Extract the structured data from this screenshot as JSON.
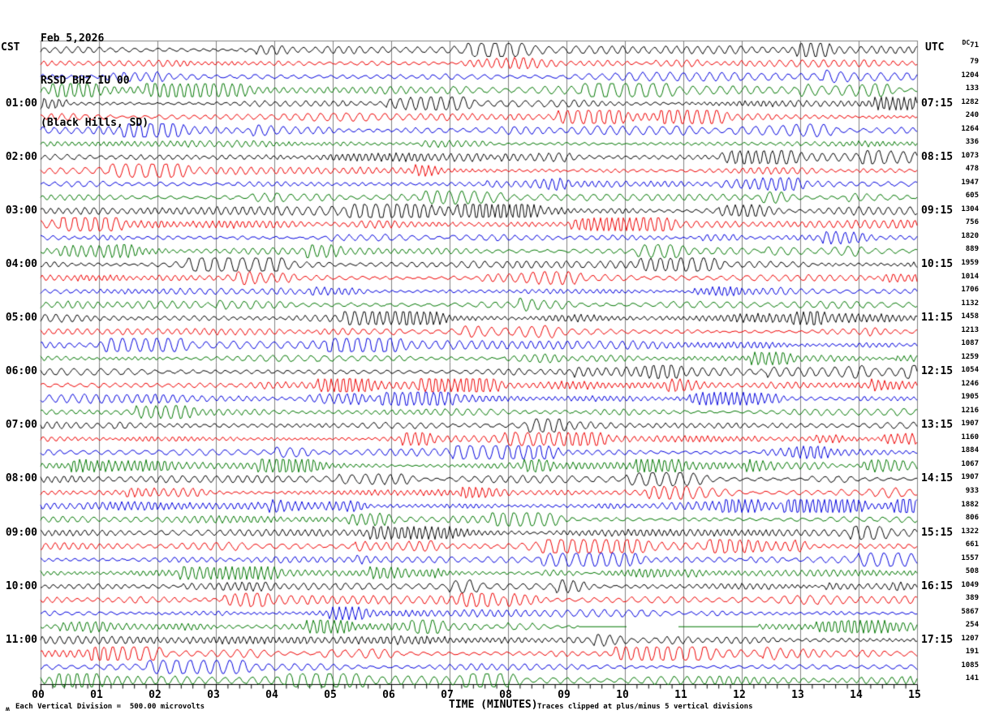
{
  "header": {
    "date": "Feb 5,2026",
    "station": "RSSD BHZ IU 00",
    "location": "(Black Hills, SD)",
    "left_tz": "CST",
    "right_tz": "UTC",
    "dc_label": "DC"
  },
  "footer": {
    "corner_glyph": "ʍ",
    "scale_note": "Each Vertical Division =  500.00 microvolts",
    "axis_title": "TIME (MINUTES)",
    "clip_note": "Traces clipped at plus/minus 5 vertical divisions"
  },
  "chart_data": {
    "type": "line",
    "title": "RSSD BHZ IU 00 (Black Hills, SD) helicorder, Feb 5,2026",
    "xlabel": "TIME (MINUTES)",
    "x_range_minutes": [
      0,
      15
    ],
    "x_ticks": [
      "00",
      "01",
      "02",
      "03",
      "04",
      "05",
      "06",
      "07",
      "08",
      "09",
      "10",
      "11",
      "12",
      "13",
      "14",
      "15"
    ],
    "minor_ticks_per_minute": 4,
    "rows": 48,
    "minutes_per_row": 15,
    "row_color_cycle": [
      "black",
      "red",
      "blue",
      "green"
    ],
    "trace_colors": {
      "black": "#000000",
      "red": "#ee0000",
      "blue": "#0000dd",
      "green": "#007700"
    },
    "grid_color": "#808080",
    "axis_color": "#000000",
    "left_axis_label": "CST",
    "right_axis_label": "UTC",
    "cst_labels": [
      "01:00",
      "02:00",
      "03:00",
      "04:00",
      "05:00",
      "06:00",
      "07:00",
      "08:00",
      "09:00",
      "10:00",
      "11:00"
    ],
    "utc_labels": [
      "07:15",
      "08:15",
      "09:15",
      "10:15",
      "11:15",
      "12:15",
      "13:15",
      "14:15",
      "15:15",
      "16:15",
      "17:15"
    ],
    "hour_label_row_start": 4,
    "hour_label_row_step": 4,
    "dc_values": [
      "71",
      "79",
      "1204",
      "133",
      "1282",
      "240",
      "1264",
      "336",
      "1073",
      "478",
      "1947",
      "605",
      "1304",
      "756",
      "1820",
      "889",
      "1959",
      "1014",
      "1706",
      "1132",
      "1458",
      "1213",
      "1087",
      "1259",
      "1054",
      "1246",
      "1905",
      "1216",
      "1907",
      "1160",
      "1884",
      "1067",
      "1907",
      "933",
      "1882",
      "806",
      "1322",
      "661",
      "1557",
      "508",
      "1049",
      "389",
      "5867",
      "254",
      "1207",
      "191",
      "1085",
      "141"
    ],
    "clip_divisions": 5,
    "waveform_note": "Continuous background microseism noise; quasi-periodic oscillation, period 4-9 s equivalent, amplitude ~1-5 divisions with intermittent bursts, clipped at +/-5 divisions",
    "data_gap": {
      "row": 44,
      "flat_minutes": [
        9.2,
        12.3
      ],
      "gap_minutes": [
        10.05,
        10.9
      ]
    },
    "start_event": {
      "row": 5,
      "minutes": [
        0,
        0.5
      ]
    },
    "noise_seed": 20260205
  }
}
